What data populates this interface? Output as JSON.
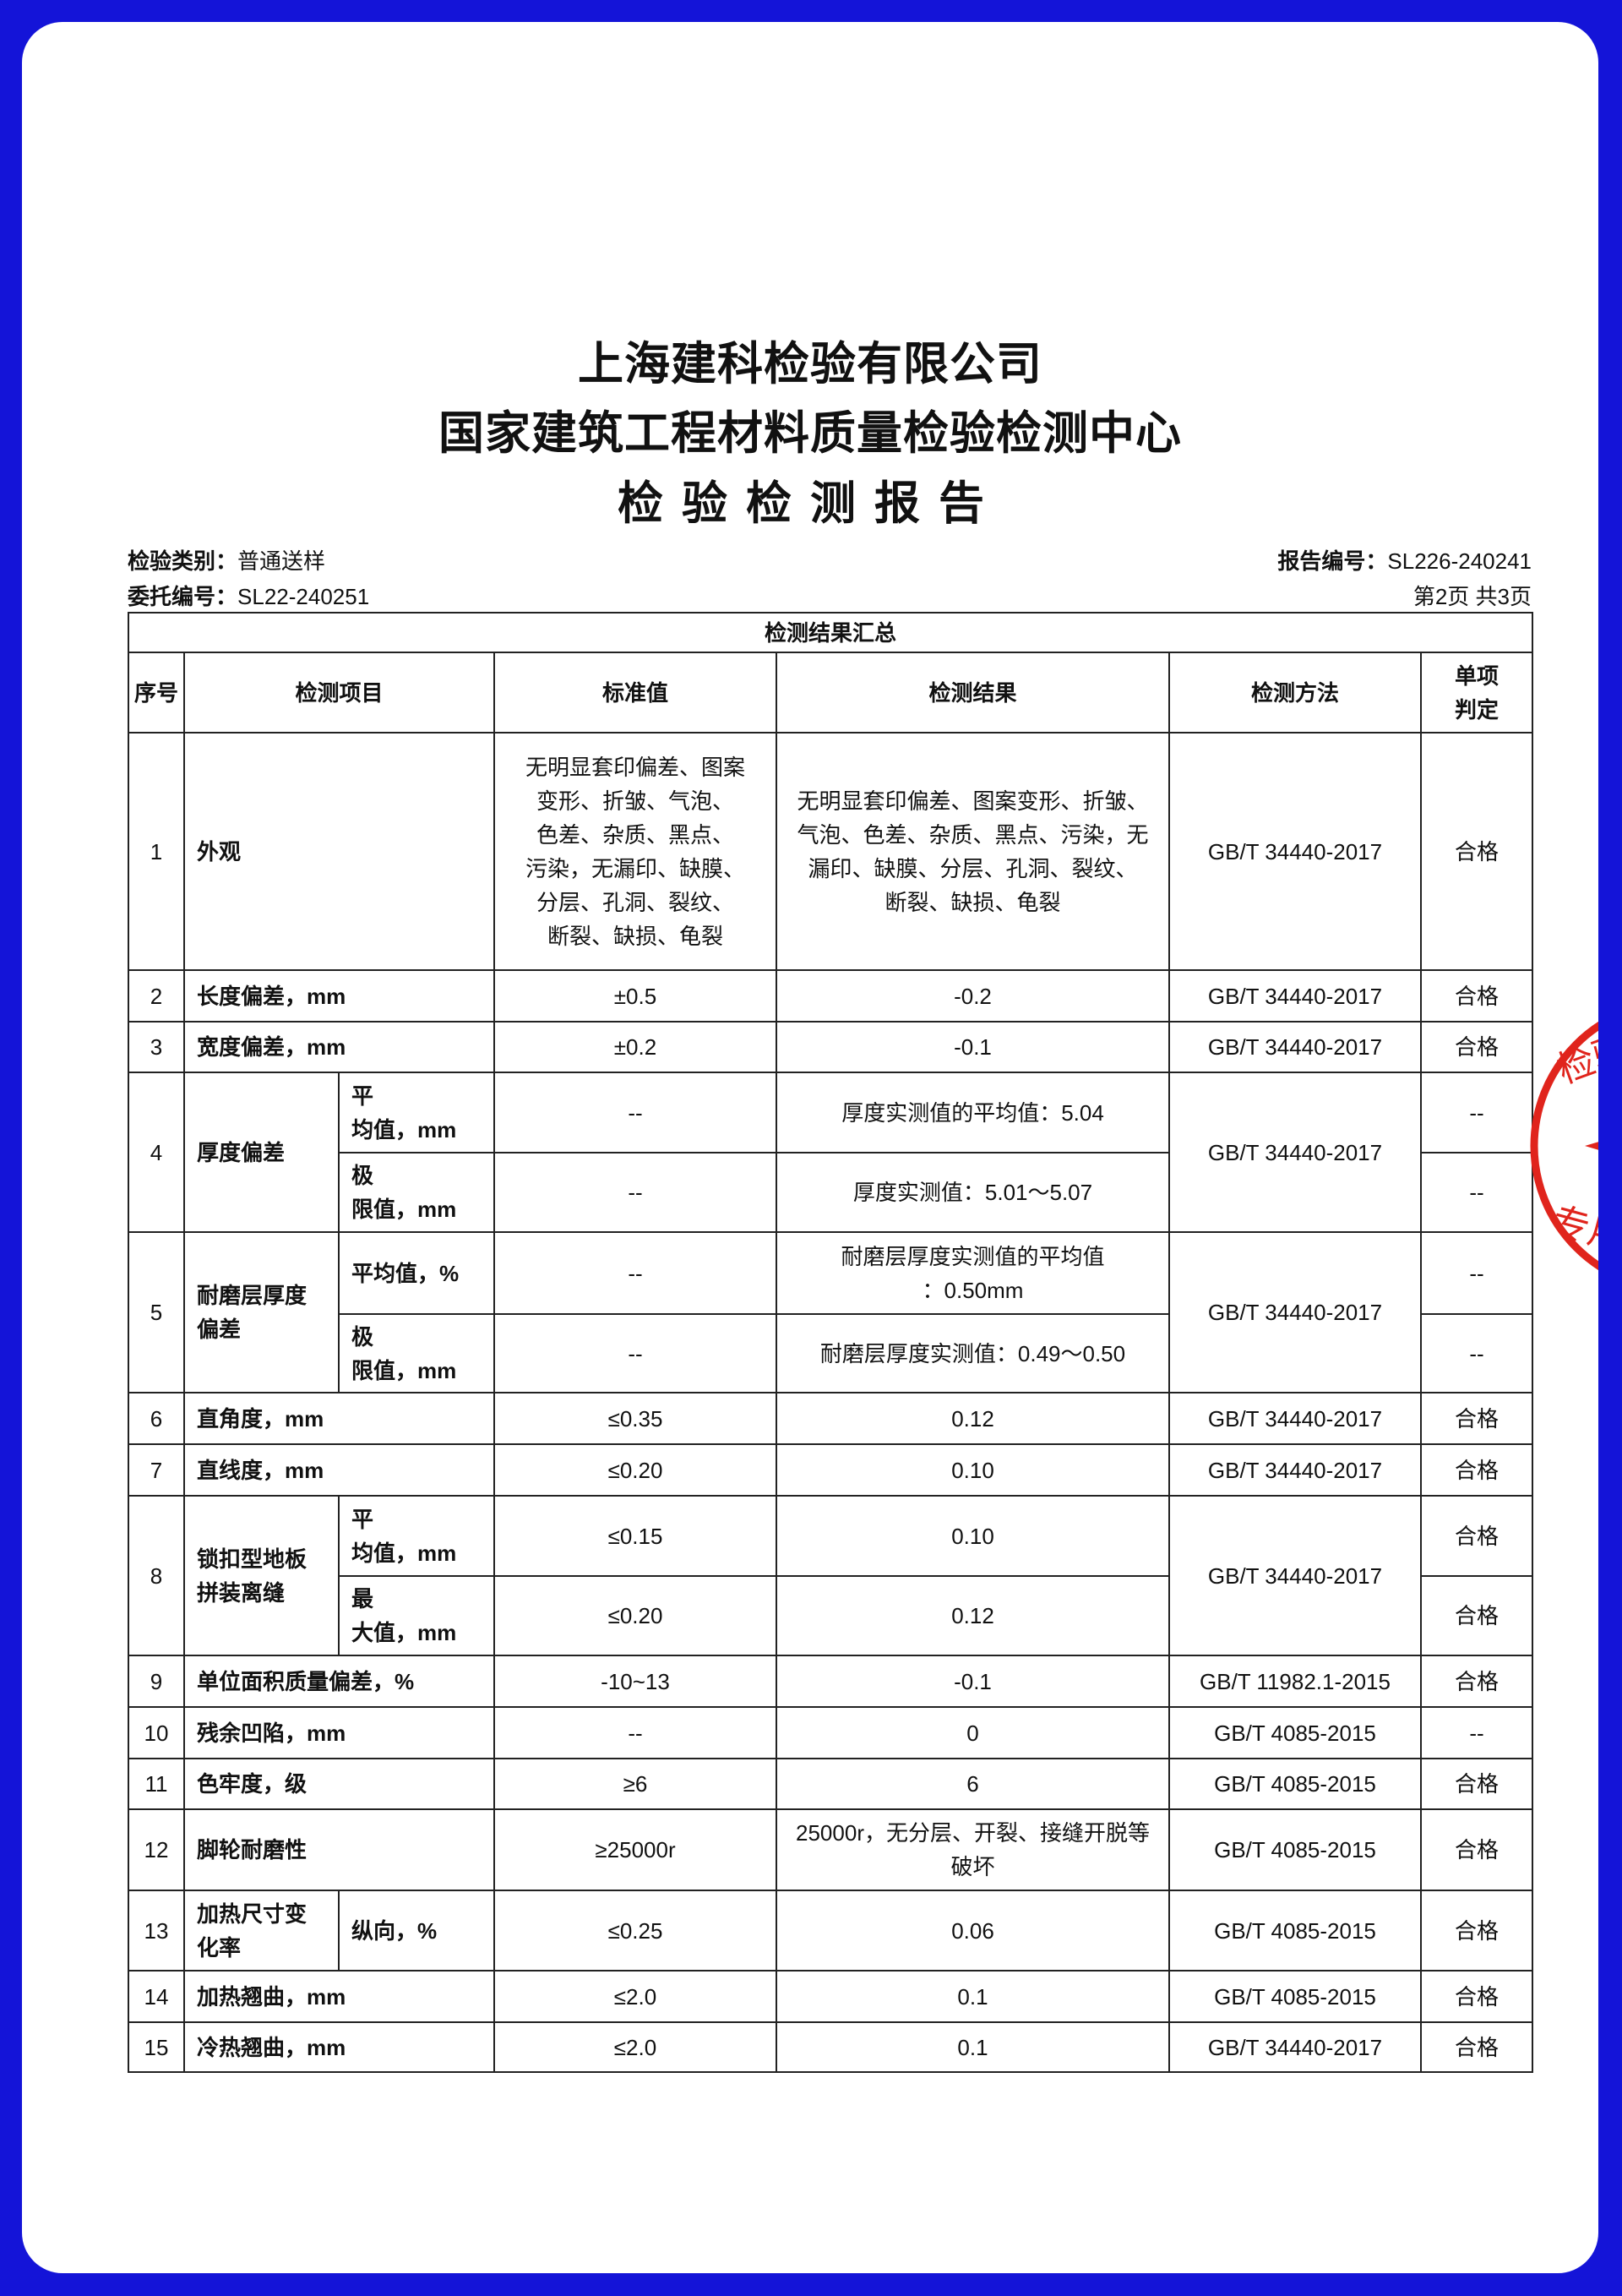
{
  "header": {
    "company": "上海建科检验有限公司",
    "center": "国家建筑工程材料质量检验检测中心",
    "report_title": "检验检测报告"
  },
  "info": {
    "category_label": "检验类别：",
    "category_value": "普通送样",
    "entrust_label": "委托编号：",
    "entrust_value": "SL22-240251",
    "report_no_label": "报告编号：",
    "report_no_value": "SL226-240241",
    "page": "第2页 共3页"
  },
  "table": {
    "caption": "检测结果汇总",
    "columns": [
      "序号",
      "检测项目",
      "标准值",
      "检测结果",
      "检测方法",
      "单项\n判定"
    ],
    "rows": [
      {
        "no": "1",
        "item": "外观",
        "method": "GB/T 34440-2017",
        "sub": [
          {
            "label": null,
            "standard": "无明显套印偏差、图案\n变形、折皱、气泡、\n色差、杂质、黑点、\n污染，无漏印、缺膜、\n分层、孔洞、裂纹、\n断裂、缺损、龟裂",
            "result": "无明显套印偏差、图案变形、折皱、\n气泡、色差、杂质、黑点、污染，无\n漏印、缺膜、分层、孔洞、裂纹、\n断裂、缺损、龟裂",
            "verdict": "合格"
          }
        ]
      },
      {
        "no": "2",
        "item": "长度偏差，mm",
        "method": "GB/T 34440-2017",
        "sub": [
          {
            "label": null,
            "standard": "±0.5",
            "result": "-0.2",
            "verdict": "合格"
          }
        ]
      },
      {
        "no": "3",
        "item": "宽度偏差，mm",
        "method": "GB/T 34440-2017",
        "sub": [
          {
            "label": null,
            "standard": "±0.2",
            "result": "-0.1",
            "verdict": "合格"
          }
        ]
      },
      {
        "no": "4",
        "item": "厚度偏差",
        "method": "GB/T 34440-2017",
        "sub": [
          {
            "label": "平\n均值，mm",
            "standard": "--",
            "result": "厚度实测值的平均值：5.04",
            "verdict": "--"
          },
          {
            "label": "极\n限值，mm",
            "standard": "--",
            "result": "厚度实测值：5.01～5.07",
            "verdict": "--"
          }
        ]
      },
      {
        "no": "5",
        "item": "耐磨层厚度\n偏差",
        "method": "GB/T 34440-2017",
        "sub": [
          {
            "label": "平均值，%",
            "standard": "--",
            "result": "耐磨层厚度实测值的平均值\n：0.50mm",
            "verdict": "--"
          },
          {
            "label": "极\n限值，mm",
            "standard": "--",
            "result": "耐磨层厚度实测值：0.49～0.50",
            "verdict": "--"
          }
        ]
      },
      {
        "no": "6",
        "item": "直角度，mm",
        "method": "GB/T 34440-2017",
        "sub": [
          {
            "label": null,
            "standard": "≤0.35",
            "result": "0.12",
            "verdict": "合格"
          }
        ]
      },
      {
        "no": "7",
        "item": "直线度，mm",
        "method": "GB/T 34440-2017",
        "sub": [
          {
            "label": null,
            "standard": "≤0.20",
            "result": "0.10",
            "verdict": "合格"
          }
        ]
      },
      {
        "no": "8",
        "item": "锁扣型地板\n拼装离缝",
        "method": "GB/T 34440-2017",
        "sub": [
          {
            "label": "平\n均值，mm",
            "standard": "≤0.15",
            "result": "0.10",
            "verdict": "合格"
          },
          {
            "label": "最\n大值，mm",
            "standard": "≤0.20",
            "result": "0.12",
            "verdict": "合格"
          }
        ]
      },
      {
        "no": "9",
        "item": "单位面积质量偏差，%",
        "method": "GB/T 11982.1-2015",
        "sub": [
          {
            "label": null,
            "standard": "-10~13",
            "result": "-0.1",
            "verdict": "合格"
          }
        ]
      },
      {
        "no": "10",
        "item": "残余凹陷，mm",
        "method": "GB/T 4085-2015",
        "sub": [
          {
            "label": null,
            "standard": "--",
            "result": "0",
            "verdict": "--"
          }
        ]
      },
      {
        "no": "11",
        "item": "色牢度，级",
        "method": "GB/T 4085-2015",
        "sub": [
          {
            "label": null,
            "standard": "≥6",
            "result": "6",
            "verdict": "合格"
          }
        ]
      },
      {
        "no": "12",
        "item": "脚轮耐磨性",
        "method": "GB/T 4085-2015",
        "sub": [
          {
            "label": null,
            "standard": "≥25000r",
            "result": "25000r，无分层、开裂、接缝开脱等\n破坏",
            "verdict": "合格"
          }
        ]
      },
      {
        "no": "13",
        "item": "加热尺寸变\n化率",
        "method": "GB/T 4085-2015",
        "sub": [
          {
            "label": "纵向，%",
            "standard": "≤0.25",
            "result": "0.06",
            "verdict": "合格"
          }
        ]
      },
      {
        "no": "14",
        "item": "加热翘曲，mm",
        "method": "GB/T 4085-2015",
        "sub": [
          {
            "label": null,
            "standard": "≤2.0",
            "result": "0.1",
            "verdict": "合格"
          }
        ]
      },
      {
        "no": "15",
        "item": "冷热翘曲，mm",
        "method": "GB/T 34440-2017",
        "sub": [
          {
            "label": null,
            "standard": "≤2.0",
            "result": "0.1",
            "verdict": "合格"
          }
        ]
      }
    ]
  },
  "stamp": {
    "text_top": "检验",
    "text_bottom": "专用",
    "color": "#e0241c"
  },
  "colors": {
    "background": "#1414d8"
  }
}
